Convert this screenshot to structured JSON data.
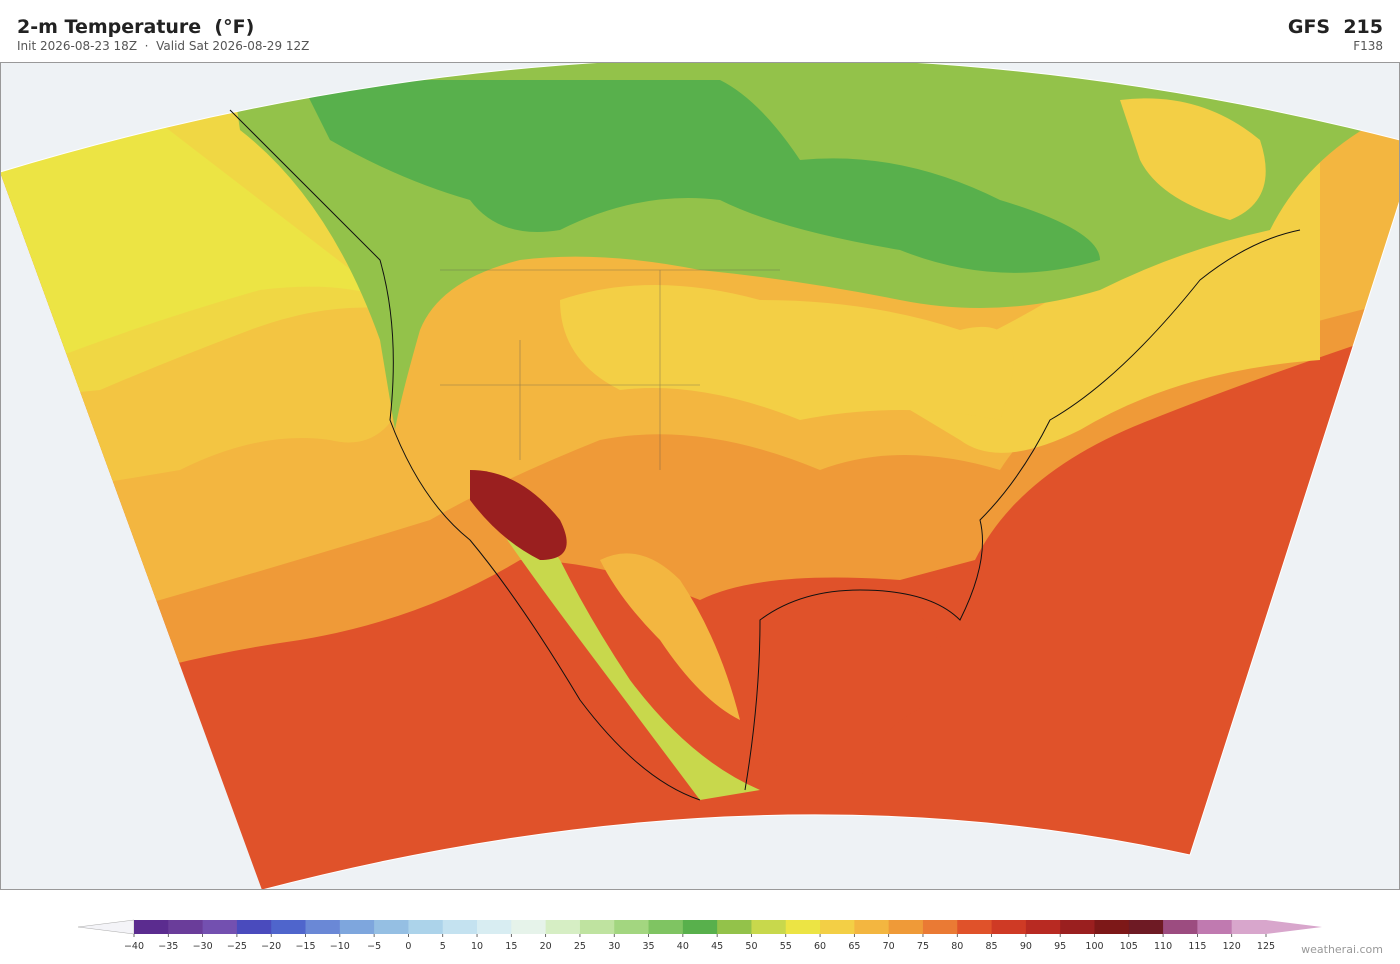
{
  "header": {
    "title": "2-m Temperature  (°F)",
    "subtitle": "Init 2026-08-23 18Z  ·  Valid Sat 2026-08-29 12Z",
    "model": "GFS  215",
    "step": "F138"
  },
  "colorbar": {
    "ticks": [
      {
        "value": -40,
        "label": "−40"
      },
      {
        "value": -35,
        "label": "−35"
      },
      {
        "value": -30,
        "label": "−30"
      },
      {
        "value": -25,
        "label": "−25"
      },
      {
        "value": -20,
        "label": "−20"
      },
      {
        "value": -15,
        "label": "−15"
      },
      {
        "value": -10,
        "label": "−10"
      },
      {
        "value": -5,
        "label": "−5"
      },
      0,
      5,
      10,
      15,
      20,
      25,
      30,
      35,
      40,
      45,
      50,
      55,
      60,
      65,
      70,
      75,
      80,
      85,
      90,
      95,
      100,
      105,
      110,
      115,
      120,
      125
    ],
    "colors": [
      "#5b2c8f",
      "#6a3d9a",
      "#7350b0",
      "#4a4bbd",
      "#4f65cc",
      "#6a88d6",
      "#7ea6dd",
      "#95bfe3",
      "#acd3ea",
      "#c4e2f0",
      "#d8edf2",
      "#e6f3ea",
      "#d6eec4",
      "#bfe3a0",
      "#a3d680",
      "#7fc462",
      "#58b04c",
      "#93c24a",
      "#c8d84c",
      "#ece444",
      "#f3cf45",
      "#f3b640",
      "#ef9a38",
      "#ea7a34",
      "#e0522a",
      "#cf3a25",
      "#b82a22",
      "#9a1f1f",
      "#7d1818",
      "#6e1a24",
      "#9c4c80",
      "#c07ab0",
      "#d8a6cc"
    ],
    "under_color": "#f4f4f8",
    "over_color": "#d8a6cc"
  },
  "credit": "weatherai.com"
}
